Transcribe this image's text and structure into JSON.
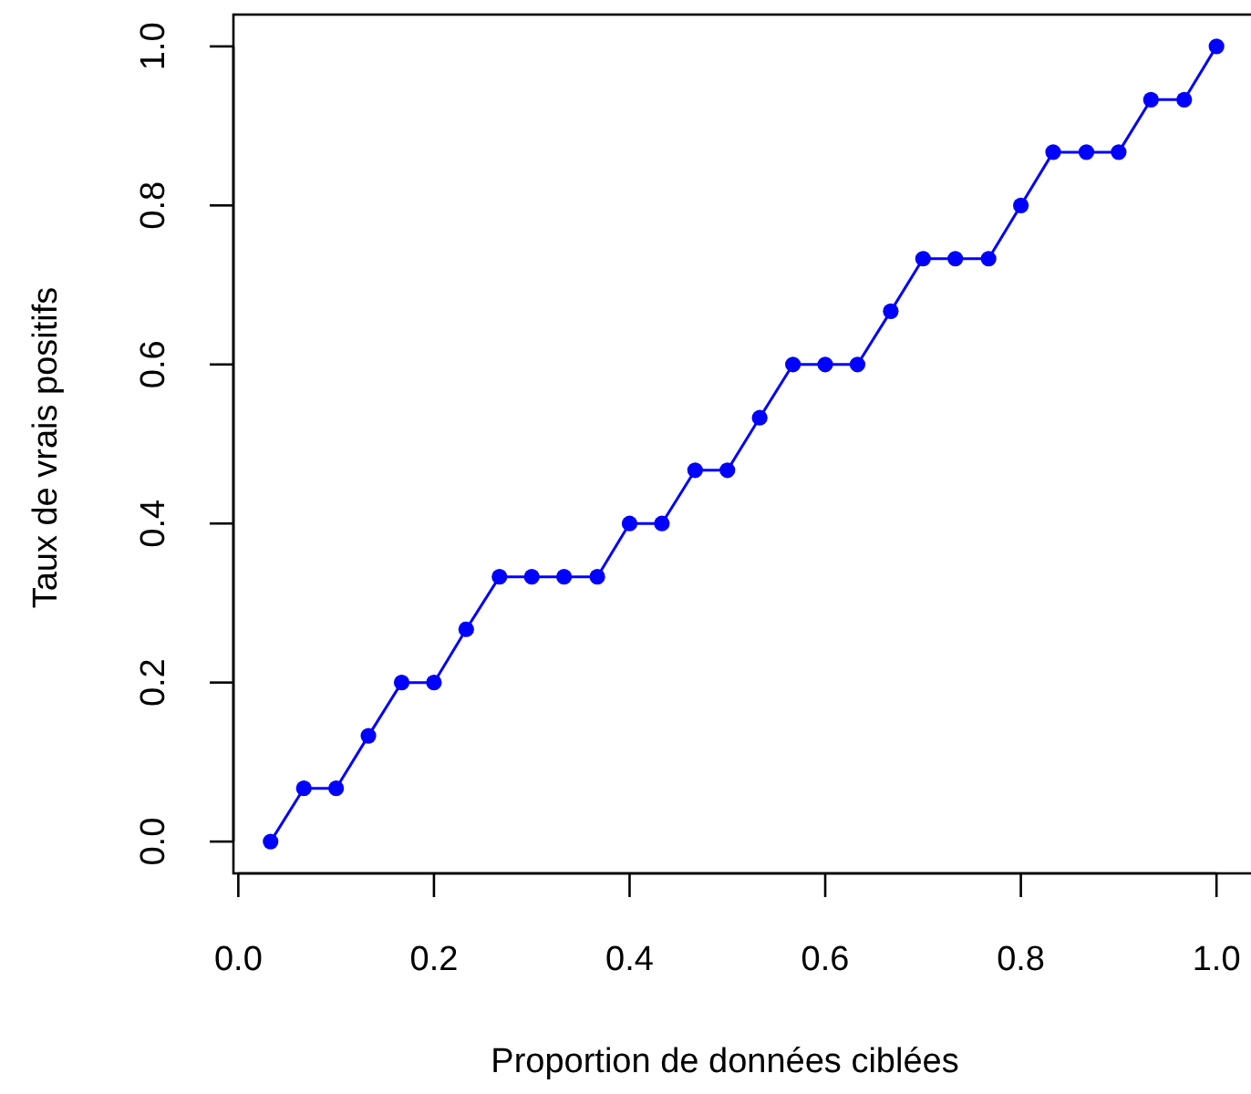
{
  "chart_data": {
    "type": "line",
    "xlabel": "Proportion de données ciblées",
    "ylabel": "Taux de vrais positifs",
    "x": [
      0.033,
      0.067,
      0.1,
      0.133,
      0.167,
      0.2,
      0.233,
      0.267,
      0.3,
      0.333,
      0.367,
      0.4,
      0.433,
      0.467,
      0.5,
      0.533,
      0.567,
      0.6,
      0.633,
      0.667,
      0.7,
      0.733,
      0.767,
      0.8,
      0.833,
      0.867,
      0.9,
      0.933,
      0.967,
      1.0
    ],
    "series": [
      {
        "color": "#0000ff",
        "values": [
          0,
          0.067,
          0.067,
          0.133,
          0.2,
          0.2,
          0.267,
          0.333,
          0.333,
          0.333,
          0.333,
          0.4,
          0.4,
          0.467,
          0.467,
          0.533,
          0.6,
          0.6,
          0.6,
          0.667,
          0.733,
          0.733,
          0.733,
          0.8,
          0.867,
          0.867,
          0.867,
          0.933,
          0.933,
          1.0
        ]
      }
    ],
    "xlim": [
      -0.005,
      1.039
    ],
    "ylim": [
      -0.04,
      1.04
    ],
    "xticks": [
      {
        "value": 0,
        "label": "0.0"
      },
      0.2,
      0.4,
      0.6,
      0.8,
      {
        "value": 1,
        "label": "1.0"
      }
    ],
    "yticks": [
      {
        "value": 0,
        "label": "0.0"
      },
      0.2,
      0.4,
      0.6,
      0.8,
      {
        "value": 1,
        "label": "1.0"
      }
    ],
    "marker": "circle",
    "line_style": "solid"
  }
}
